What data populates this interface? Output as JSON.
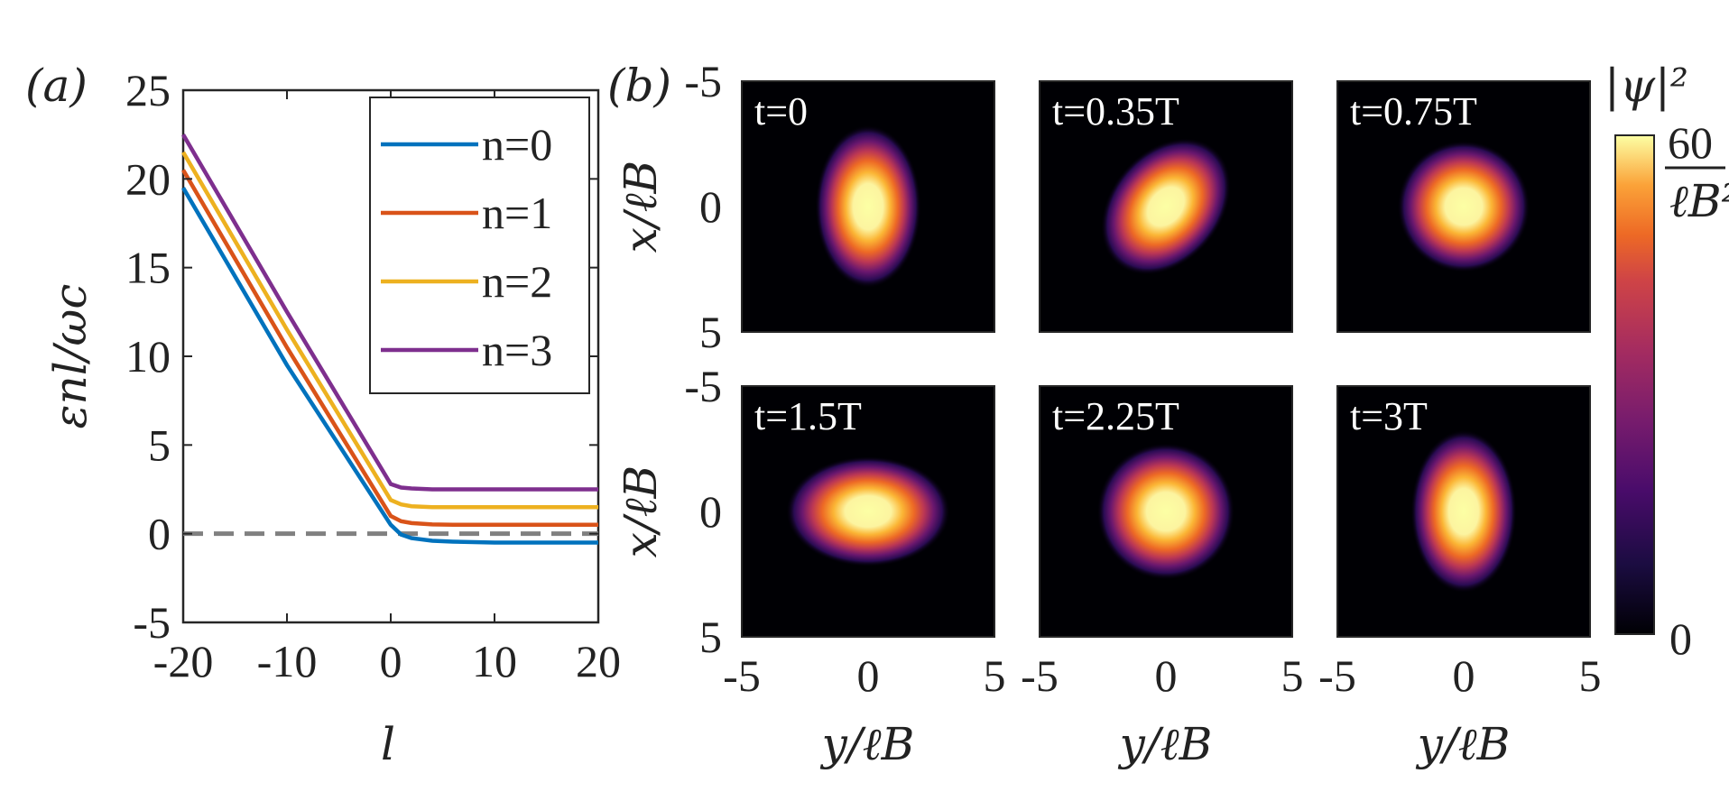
{
  "chart_data": [
    {
      "type": "line",
      "panel_label": "(a)",
      "xlabel": "l",
      "ylabel": "εnl/ωc",
      "xlim": [
        -20,
        20
      ],
      "ylim": [
        -5,
        25
      ],
      "xticks": [
        "-20",
        "-10",
        "0",
        "10",
        "20"
      ],
      "yticks": [
        "25",
        "20",
        "15",
        "10",
        "5",
        "0",
        "-5"
      ],
      "legend_position": "top-right",
      "reference_line": {
        "y": 0,
        "style": "dashed",
        "color": "#808080"
      },
      "series": [
        {
          "name": "n=0",
          "color": "#0072BD",
          "x": [
            -20,
            -10,
            0,
            1,
            2,
            4,
            6,
            10,
            15,
            20
          ],
          "y": [
            19.5,
            9.5,
            0.5,
            -0.05,
            -0.25,
            -0.4,
            -0.45,
            -0.5,
            -0.5,
            -0.5
          ]
        },
        {
          "name": "n=1",
          "color": "#D95319",
          "x": [
            -20,
            -10,
            0,
            1,
            2,
            4,
            6,
            10,
            15,
            20
          ],
          "y": [
            20.5,
            10.5,
            1.0,
            0.7,
            0.6,
            0.52,
            0.5,
            0.5,
            0.5,
            0.5
          ]
        },
        {
          "name": "n=2",
          "color": "#EDB120",
          "x": [
            -20,
            -10,
            0,
            1,
            2,
            4,
            6,
            10,
            15,
            20
          ],
          "y": [
            21.5,
            11.5,
            1.9,
            1.65,
            1.55,
            1.5,
            1.5,
            1.5,
            1.5,
            1.5
          ]
        },
        {
          "name": "n=3",
          "color": "#7E2F8E",
          "x": [
            -20,
            -10,
            0,
            1,
            2,
            4,
            6,
            10,
            15,
            20
          ],
          "y": [
            22.5,
            12.5,
            2.8,
            2.6,
            2.55,
            2.5,
            2.5,
            2.5,
            2.5,
            2.5
          ]
        }
      ]
    },
    {
      "type": "heatmap",
      "panel_label": "(b)",
      "xlabel": "y/ℓB",
      "ylabel": "x/ℓB",
      "xlim": [
        -5,
        5
      ],
      "ylim": [
        -5,
        5
      ],
      "xticks": [
        "-5",
        "0",
        "5"
      ],
      "yticks": [
        "-5",
        "0",
        "5"
      ],
      "colorbar": {
        "label": "|ψ|²",
        "max_label": "60",
        "max_unit": "ℓB²",
        "min_label": "0",
        "colormap": "inferno",
        "range": [
          0,
          60
        ]
      },
      "frames": [
        {
          "time": "t=0",
          "sigma_x": 1.0,
          "sigma_y": 1.55,
          "angle_deg": 0
        },
        {
          "time": "t=0.35T",
          "sigma_x": 1.05,
          "sigma_y": 1.45,
          "angle_deg": 40
        },
        {
          "time": "t=0.75T",
          "sigma_x": 1.25,
          "sigma_y": 1.25,
          "angle_deg": 0
        },
        {
          "time": "t=1.5T",
          "sigma_x": 1.55,
          "sigma_y": 1.05,
          "angle_deg": 0
        },
        {
          "time": "t=2.25T",
          "sigma_x": 1.3,
          "sigma_y": 1.3,
          "angle_deg": 0
        },
        {
          "time": "t=3T",
          "sigma_x": 1.0,
          "sigma_y": 1.55,
          "angle_deg": 0
        }
      ]
    }
  ]
}
